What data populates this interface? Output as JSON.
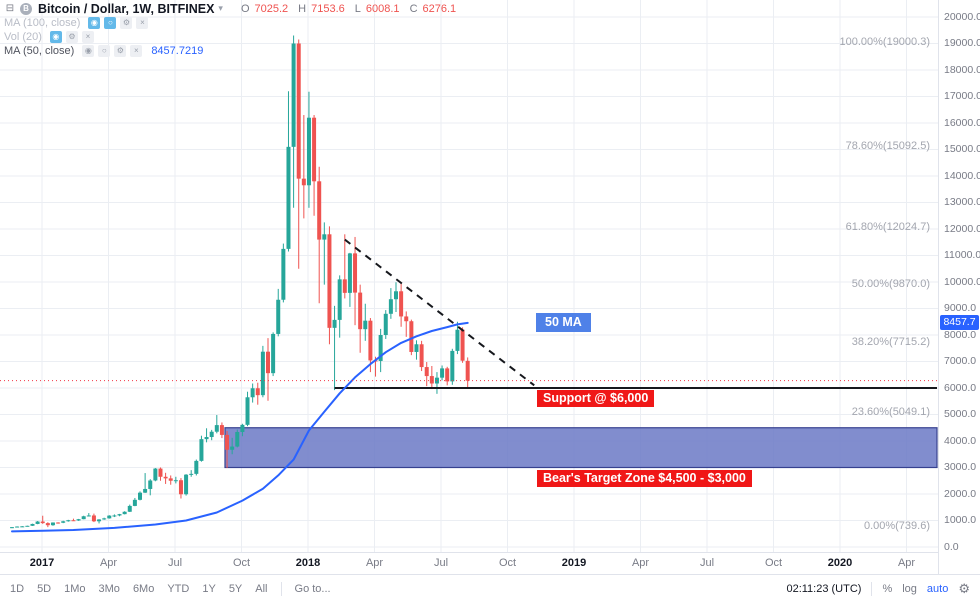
{
  "header": {
    "title": "Bitcoin / Dollar, 1W, BITFINEX",
    "ohlc": [
      {
        "key": "O",
        "val": "7025.2"
      },
      {
        "key": "H",
        "val": "7153.6"
      },
      {
        "key": "L",
        "val": "6008.1"
      },
      {
        "key": "C",
        "val": "6276.1"
      }
    ]
  },
  "indicators": [
    {
      "label": "MA (100, close)",
      "value": ""
    },
    {
      "label": "Vol (20)",
      "value": ""
    },
    {
      "label": "MA (50, close)",
      "value": "8457.7219"
    }
  ],
  "annotations": {
    "ma_label": "50 MA",
    "support_label": "Support @ $6,000",
    "zone_label": "Bear's Target Zone $4,500 - $3,000",
    "price_tag": "8457.7"
  },
  "icons": {
    "collapse": "⊟",
    "logo": "B",
    "chevron": "▾",
    "eye": "◉",
    "dot": "○",
    "gear": "⚙",
    "close": "×"
  },
  "axes": {
    "price_ticks": [
      "20000.0",
      "19000.0",
      "18000.0",
      "17000.0",
      "16000.0",
      "15000.0",
      "14000.0",
      "13000.0",
      "12000.0",
      "11000.0",
      "10000.0",
      "9000.0",
      "8000.0",
      "7000.0",
      "6000.0",
      "5000.0",
      "4000.0",
      "3000.0",
      "2000.0",
      "1000.0",
      "0.0"
    ],
    "time_ticks": [
      {
        "label": "2017",
        "major": true
      },
      {
        "label": "Apr",
        "major": false
      },
      {
        "label": "Jul",
        "major": false
      },
      {
        "label": "Oct",
        "major": false
      },
      {
        "label": "2018",
        "major": true
      },
      {
        "label": "Apr",
        "major": false
      },
      {
        "label": "Jul",
        "major": false
      },
      {
        "label": "Oct",
        "major": false
      },
      {
        "label": "2019",
        "major": true
      },
      {
        "label": "Apr",
        "major": false
      },
      {
        "label": "Jul",
        "major": false
      },
      {
        "label": "Oct",
        "major": false
      },
      {
        "label": "2020",
        "major": true
      },
      {
        "label": "Apr",
        "major": false
      }
    ]
  },
  "toolbar_bottom": {
    "ranges": [
      "1D",
      "5D",
      "1Mo",
      "3Mo",
      "6Mo",
      "YTD",
      "1Y",
      "5Y",
      "All"
    ],
    "goto": "Go to...",
    "clock": "02:11:23 (UTC)",
    "percent": "%",
    "log": "log",
    "auto": "auto"
  },
  "colors": {
    "up": "#26a69a",
    "down": "#ef5350",
    "ma_blue": "#2962ff",
    "grid": "#ebeef3",
    "line_black": "#16181d",
    "red_line": "#f23645",
    "zone_fill": "#6b79c5",
    "zone_border": "#36418f"
  },
  "chart_data": {
    "type": "candlestick",
    "symbol": "BTCUSD",
    "exchange": "BITFINEX",
    "interval": "1W",
    "title": "Bitcoin / Dollar, 1W, BITFINEX",
    "ylim": [
      0,
      20000
    ],
    "first_candle_week": "2016-11-21",
    "last_close": 6276.1,
    "ma50_current": 8457.7219,
    "support": {
      "price": 6000,
      "x_start_idx": 63
    },
    "target_zone": {
      "top": 4500,
      "bottom": 3000,
      "x_start_idx": 41.6
    },
    "trendline": {
      "start": {
        "idx": 65,
        "price": 11600
      },
      "end": {
        "idx": 102,
        "price": 6100
      }
    },
    "fib_levels": [
      {
        "text": "100.00%(19000.3)",
        "price": 19000.3
      },
      {
        "text": "78.60%(15092.5)",
        "price": 15092.5
      },
      {
        "text": "61.80%(12024.7)",
        "price": 12024.7
      },
      {
        "text": "50.00%(9870.0)",
        "price": 9870.0
      },
      {
        "text": "38.20%(7715.2)",
        "price": 7715.2
      },
      {
        "text": "23.60%(5049.1)",
        "price": 5049.1
      },
      {
        "text": "0.00%(739.6)",
        "price": 739.6
      }
    ],
    "ma50_points": [
      [
        0,
        590
      ],
      [
        6,
        615
      ],
      [
        12,
        640
      ],
      [
        20,
        720
      ],
      [
        28,
        850
      ],
      [
        34,
        1000
      ],
      [
        40,
        1300
      ],
      [
        45,
        1750
      ],
      [
        49,
        2200
      ],
      [
        52,
        2700
      ],
      [
        55,
        3300
      ],
      [
        58,
        4400
      ],
      [
        61,
        5100
      ],
      [
        64,
        5800
      ],
      [
        67,
        6400
      ],
      [
        70,
        6900
      ],
      [
        73,
        7350
      ],
      [
        76,
        7700
      ],
      [
        79,
        7950
      ],
      [
        82,
        8150
      ],
      [
        85,
        8300
      ],
      [
        87,
        8400
      ],
      [
        89,
        8457.7
      ]
    ],
    "candles": [
      [
        735,
        755,
        710,
        748
      ],
      [
        748,
        780,
        740,
        772
      ],
      [
        772,
        790,
        755,
        780
      ],
      [
        780,
        805,
        770,
        800
      ],
      [
        800,
        880,
        795,
        870
      ],
      [
        870,
        980,
        860,
        962
      ],
      [
        962,
        1180,
        874,
        902
      ],
      [
        902,
        935,
        750,
        822
      ],
      [
        822,
        930,
        800,
        924
      ],
      [
        924,
        935,
        880,
        915
      ],
      [
        915,
        990,
        900,
        970
      ],
      [
        970,
        1025,
        955,
        1010
      ],
      [
        1010,
        1070,
        990,
        1000
      ],
      [
        1000,
        1060,
        985,
        1050
      ],
      [
        1050,
        1180,
        1045,
        1160
      ],
      [
        1160,
        1280,
        1150,
        1190
      ],
      [
        1190,
        1260,
        940,
        970
      ],
      [
        970,
        1050,
        890,
        1040
      ],
      [
        1040,
        1105,
        1025,
        1080
      ],
      [
        1080,
        1200,
        1070,
        1185
      ],
      [
        1185,
        1230,
        1130,
        1190
      ],
      [
        1190,
        1250,
        1160,
        1240
      ],
      [
        1240,
        1350,
        1230,
        1330
      ],
      [
        1330,
        1600,
        1320,
        1550
      ],
      [
        1550,
        1850,
        1540,
        1780
      ],
      [
        1780,
        2100,
        1760,
        2050
      ],
      [
        2050,
        2790,
        2040,
        2190
      ],
      [
        2190,
        2560,
        1950,
        2510
      ],
      [
        2510,
        2980,
        2480,
        2960
      ],
      [
        2960,
        3000,
        2500,
        2650
      ],
      [
        2650,
        2800,
        2380,
        2590
      ],
      [
        2590,
        2700,
        2350,
        2500
      ],
      [
        2500,
        2650,
        2400,
        2520
      ],
      [
        2520,
        2600,
        1830,
        1990
      ],
      [
        1990,
        2750,
        1940,
        2730
      ],
      [
        2730,
        2900,
        2650,
        2760
      ],
      [
        2760,
        3300,
        2700,
        3250
      ],
      [
        3250,
        4200,
        3220,
        4070
      ],
      [
        4070,
        4480,
        3950,
        4150
      ],
      [
        4150,
        4420,
        4030,
        4350
      ],
      [
        4350,
        4980,
        4290,
        4600
      ],
      [
        4600,
        4700,
        4110,
        4230
      ],
      [
        4230,
        4380,
        2980,
        3670
      ],
      [
        3670,
        4120,
        3500,
        3790
      ],
      [
        3790,
        4430,
        3760,
        4340
      ],
      [
        4340,
        4650,
        4180,
        4610
      ],
      [
        4610,
        5860,
        4560,
        5650
      ],
      [
        5650,
        6170,
        5450,
        5990
      ],
      [
        5990,
        6200,
        5370,
        5730
      ],
      [
        5730,
        7590,
        5650,
        7370
      ],
      [
        7370,
        7880,
        5520,
        6560
      ],
      [
        6560,
        8100,
        6450,
        8040
      ],
      [
        8040,
        9740,
        7950,
        9330
      ],
      [
        9330,
        11450,
        9230,
        11250
      ],
      [
        11250,
        17200,
        11150,
        15100
      ],
      [
        15100,
        19300,
        12800,
        19000
      ],
      [
        19000,
        19150,
        10500,
        13900
      ],
      [
        13900,
        16300,
        12400,
        13650
      ],
      [
        13650,
        17180,
        12800,
        16200
      ],
      [
        16200,
        16300,
        12500,
        13800
      ],
      [
        13800,
        14350,
        9200,
        11600
      ],
      [
        11600,
        12250,
        9900,
        11800
      ],
      [
        11800,
        12100,
        7650,
        8270
      ],
      [
        8270,
        9100,
        5920,
        8570
      ],
      [
        8570,
        10250,
        7900,
        10100
      ],
      [
        10100,
        11800,
        9380,
        9590
      ],
      [
        9590,
        11100,
        9060,
        11080
      ],
      [
        11080,
        11700,
        8370,
        9600
      ],
      [
        9600,
        9900,
        7330,
        8220
      ],
      [
        8220,
        9180,
        7780,
        8540
      ],
      [
        8540,
        8640,
        6600,
        7040
      ],
      [
        7040,
        7180,
        6430,
        7020
      ],
      [
        7020,
        8230,
        6600,
        8000
      ],
      [
        8000,
        8940,
        7850,
        8800
      ],
      [
        8800,
        9770,
        8610,
        9350
      ],
      [
        9350,
        9990,
        8870,
        9650
      ],
      [
        9650,
        9950,
        8310,
        8700
      ],
      [
        8700,
        8890,
        7930,
        8520
      ],
      [
        8520,
        8580,
        7240,
        7360
      ],
      [
        7360,
        7800,
        7070,
        7650
      ],
      [
        7650,
        7780,
        6640,
        6790
      ],
      [
        6790,
        6980,
        6070,
        6450
      ],
      [
        6450,
        6830,
        5960,
        6170
      ],
      [
        6170,
        6600,
        5780,
        6390
      ],
      [
        6390,
        6850,
        6290,
        6740
      ],
      [
        6740,
        6800,
        6100,
        6250
      ],
      [
        6250,
        7480,
        6120,
        7400
      ],
      [
        7400,
        8500,
        7280,
        8200
      ],
      [
        8200,
        8290,
        6950,
        7030
      ],
      [
        7025.2,
        7153.6,
        6008.1,
        6276.1
      ]
    ]
  }
}
